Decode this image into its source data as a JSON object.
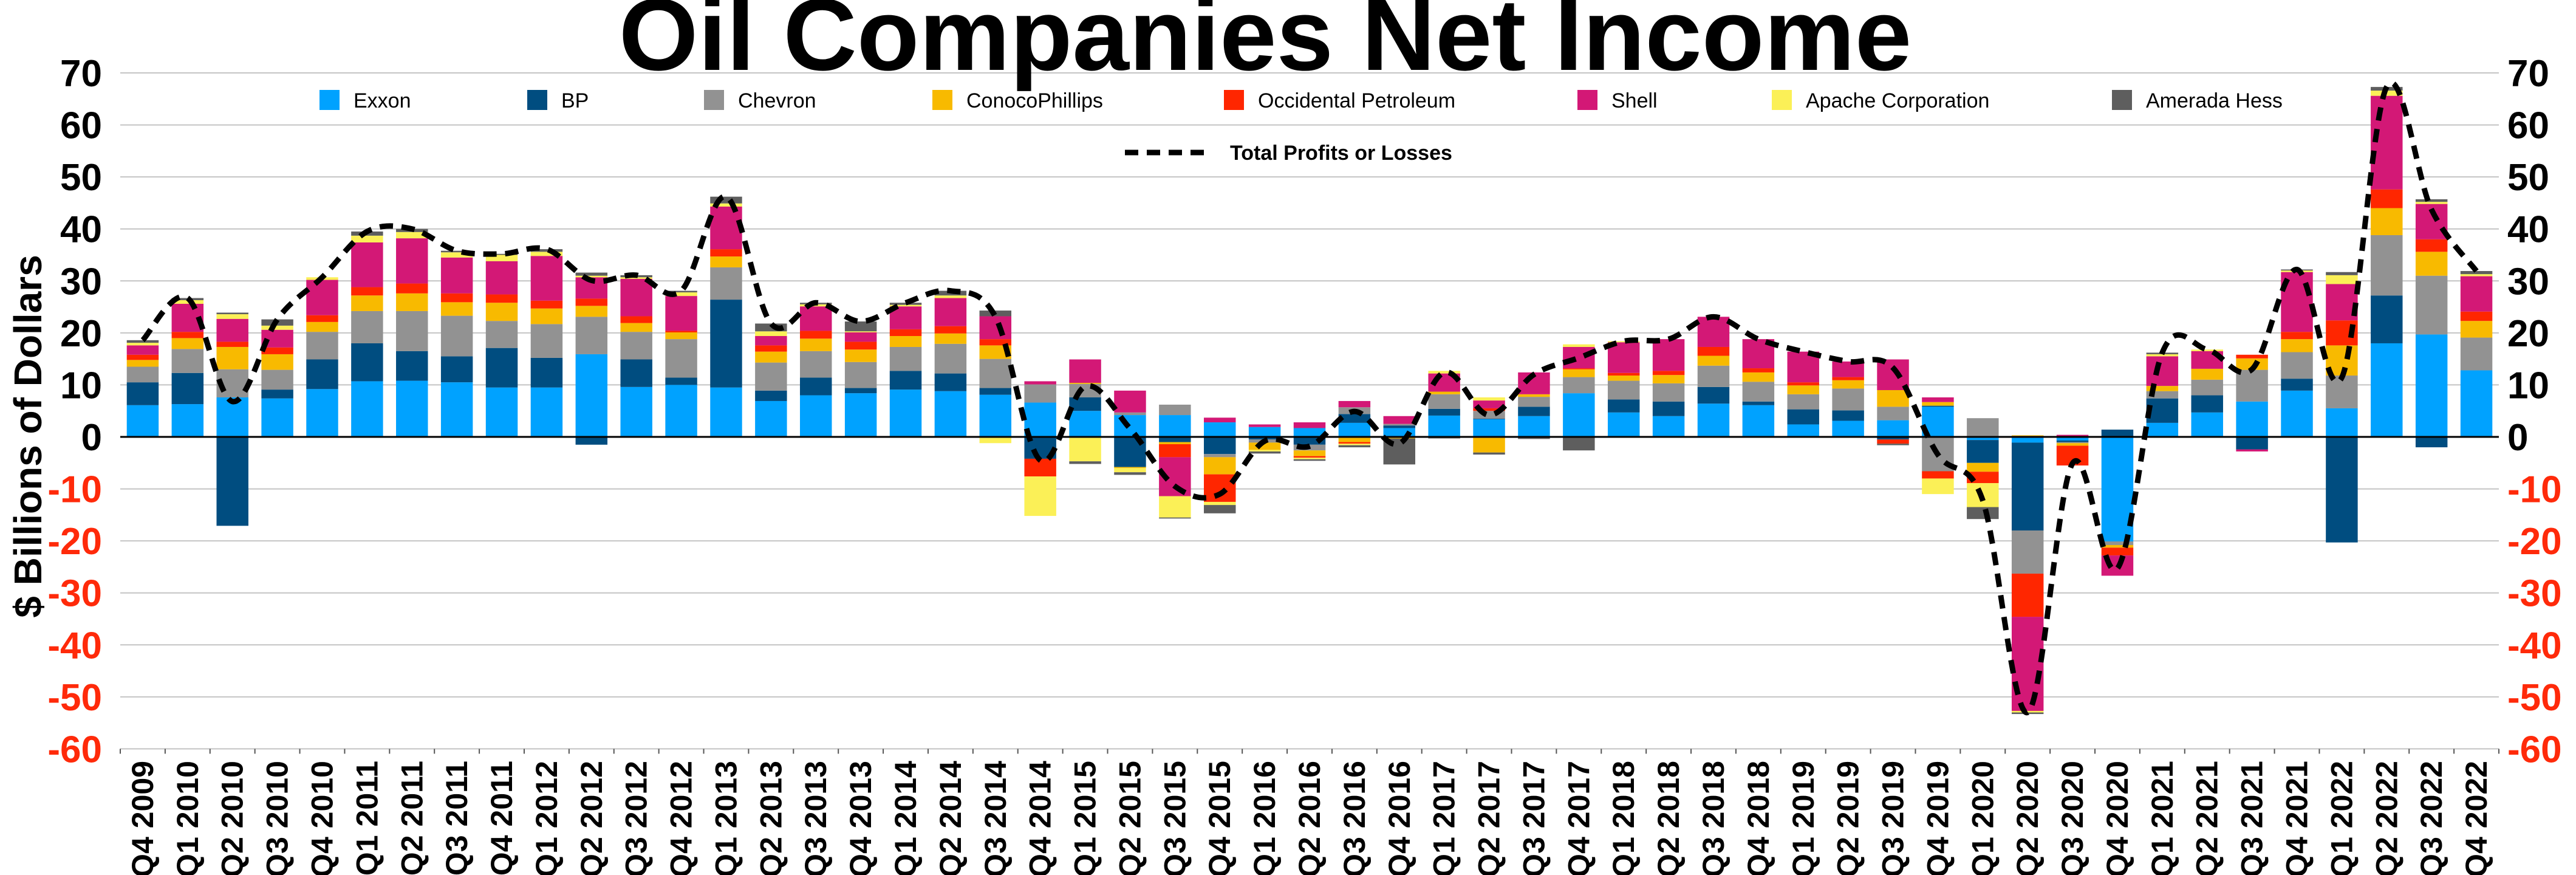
{
  "chart_data": {
    "type": "bar",
    "stacked": true,
    "title": "Oil Companies Net Income",
    "ylabel": "$ Billions of Dollars",
    "ylim": [
      -60,
      70
    ],
    "yticks": [
      70,
      60,
      50,
      40,
      30,
      20,
      10,
      0,
      -10,
      -20,
      -30,
      -40,
      -50,
      -60
    ],
    "dual_y_axis": true,
    "negative_tick_color": "#ff2a0a",
    "grid": true,
    "legend_placement": "top",
    "categories": [
      "Q4 2009",
      "Q1 2010",
      "Q2 2010",
      "Q3 2010",
      "Q4 2010",
      "Q1 2011",
      "Q2 2011",
      "Q3 2011",
      "Q4 2011",
      "Q1 2012",
      "Q2 2012",
      "Q3 2012",
      "Q4 2012",
      "Q1 2013",
      "Q2 2013",
      "Q3 2013",
      "Q4 2013",
      "Q1 2014",
      "Q2 2014",
      "Q3 2014",
      "Q4 2014",
      "Q1 2015",
      "Q2 2015",
      "Q3 2015",
      "Q4 2015",
      "Q1 2016",
      "Q2 2016",
      "Q3 2016",
      "Q4 2016",
      "Q1 2017",
      "Q2 2017",
      "Q3 2017",
      "Q4 2017",
      "Q1 2018",
      "Q2 2018",
      "Q3 2018",
      "Q4 2018",
      "Q1 2019",
      "Q2 2019",
      "Q3 2019",
      "Q4 2019",
      "Q1 2020",
      "Q2 2020",
      "Q3 2020",
      "Q4 2020",
      "Q1 2021",
      "Q2 2021",
      "Q3 2021",
      "Q4 2021",
      "Q1 2022",
      "Q2 2022",
      "Q3 2022",
      "Q4 2022"
    ],
    "series": [
      {
        "name": "Exxon",
        "color": "#00a2ff",
        "values": [
          6.1,
          6.3,
          7.6,
          7.4,
          9.2,
          10.7,
          10.8,
          10.5,
          9.5,
          9.5,
          15.9,
          9.6,
          10.0,
          9.5,
          6.9,
          8.0,
          8.4,
          9.1,
          8.8,
          8.1,
          6.6,
          5.0,
          4.2,
          4.2,
          2.8,
          1.9,
          1.7,
          2.7,
          1.7,
          4.1,
          3.4,
          4.0,
          8.4,
          4.7,
          4.0,
          6.4,
          6.1,
          2.4,
          3.1,
          3.2,
          5.8,
          -0.6,
          -1.1,
          -0.7,
          -20.1,
          2.7,
          4.7,
          6.8,
          8.9,
          5.5,
          18.0,
          19.7,
          12.8
        ]
      },
      {
        "name": "BP",
        "color": "#004d80",
        "values": [
          4.4,
          6.0,
          -17.1,
          1.7,
          5.7,
          7.3,
          5.7,
          5.0,
          7.6,
          5.7,
          -1.5,
          5.3,
          1.4,
          16.9,
          2.0,
          3.4,
          1.0,
          3.6,
          3.4,
          1.3,
          -4.2,
          2.6,
          -5.8,
          -1.0,
          -3.3,
          -0.5,
          -1.5,
          1.7,
          0.5,
          1.3,
          0.1,
          1.8,
          0,
          2.5,
          2.8,
          3.2,
          0.7,
          2.9,
          2.0,
          -0.5,
          0.2,
          -4.4,
          -16.9,
          -0.3,
          1.4,
          4.7,
          3.3,
          -2.4,
          2.3,
          -20.3,
          9.2,
          -2.0,
          0
        ]
      },
      {
        "name": "Chevron",
        "color": "#929292",
        "values": [
          3.0,
          4.6,
          5.4,
          3.8,
          5.3,
          6.2,
          7.7,
          7.8,
          5.2,
          6.5,
          7.2,
          5.3,
          7.4,
          6.2,
          5.4,
          5.1,
          5.0,
          4.6,
          5.7,
          5.6,
          3.5,
          2.6,
          0.5,
          2.0,
          -0.6,
          -0.6,
          -1.1,
          1.3,
          0.3,
          2.8,
          1.5,
          1.9,
          3.1,
          3.6,
          3.5,
          4.1,
          3.8,
          2.9,
          4.2,
          2.6,
          -6.6,
          3.6,
          -8.3,
          -0.2,
          -0.7,
          1.4,
          3.0,
          6.1,
          5.1,
          6.3,
          11.6,
          11.3,
          6.3
        ]
      },
      {
        "name": "ConocoPhillips",
        "color": "#f8ba00",
        "values": [
          1.3,
          2.1,
          4.3,
          3.0,
          1.9,
          3.0,
          3.4,
          2.6,
          3.5,
          3.0,
          2.1,
          1.7,
          1.3,
          2.1,
          2.1,
          2.4,
          2.4,
          2.1,
          2.0,
          2.6,
          0,
          0.2,
          -0.2,
          -0.4,
          -3.3,
          -1.4,
          -1.1,
          -1.0,
          -0.3,
          0.5,
          -3.0,
          0.5,
          1.5,
          1.0,
          1.6,
          1.9,
          1.8,
          1.7,
          1.6,
          3.2,
          0.7,
          -1.7,
          0.3,
          -0.5,
          -0.5,
          1.0,
          2.1,
          2.2,
          2.5,
          5.8,
          5.2,
          4.6,
          3.2
        ]
      },
      {
        "name": "Occidental Petroleum",
        "color": "#ff2600",
        "values": [
          1.0,
          1.2,
          1.0,
          1.3,
          1.3,
          1.6,
          1.9,
          1.7,
          1.6,
          1.5,
          1.4,
          1.3,
          0.3,
          1.4,
          1.2,
          1.5,
          1.5,
          1.3,
          1.4,
          1.2,
          -3.4,
          0,
          0,
          -2.5,
          -5.3,
          0,
          -0.3,
          -0.3,
          0,
          0,
          0.5,
          0,
          0.2,
          0.5,
          0.8,
          1.7,
          0.8,
          0.6,
          0.6,
          -0.8,
          -1.4,
          -2.2,
          -8.3,
          -3.8,
          -1.5,
          0,
          0,
          0.7,
          1.4,
          4.8,
          3.6,
          2.4,
          1.8
        ]
      },
      {
        "name": "Shell",
        "color": "#d31876",
        "values": [
          1.8,
          5.4,
          4.4,
          3.4,
          6.8,
          8.6,
          8.7,
          6.9,
          6.4,
          8.6,
          4.1,
          7.2,
          6.7,
          8.2,
          1.8,
          4.7,
          1.8,
          4.4,
          5.4,
          4.4,
          0.6,
          4.5,
          4.2,
          -7.5,
          0.9,
          0.5,
          1.1,
          1.2,
          1.5,
          3.5,
          1.5,
          4.2,
          4.1,
          5.9,
          6.1,
          5.8,
          5.6,
          5.9,
          3.0,
          5.9,
          0.9,
          0,
          -18.1,
          0.4,
          -3.9,
          5.7,
          3.4,
          -0.4,
          11.5,
          7.0,
          18.0,
          6.8,
          6.8
        ]
      },
      {
        "name": "Apache Corporation",
        "color": "#fbf057",
        "values": [
          0.5,
          0.7,
          0.9,
          0.8,
          0.5,
          1.3,
          1.2,
          1.0,
          1.2,
          0.8,
          0.3,
          0.3,
          0.7,
          0.6,
          0.9,
          0.4,
          0.2,
          0.3,
          0.5,
          -1.2,
          -7.6,
          -4.7,
          -0.8,
          -4.1,
          -0.6,
          -0.3,
          -0.3,
          -0.3,
          0,
          0.5,
          0.6,
          0,
          0.5,
          0.2,
          0,
          0,
          0,
          0,
          0,
          0,
          -3.0,
          -4.6,
          -0.3,
          0,
          0,
          0.4,
          0.3,
          0,
          0.3,
          1.7,
          1.0,
          0.4,
          0.4
        ]
      },
      {
        "name": "Amerada Hess",
        "color": "#5e5e5e",
        "values": [
          0.5,
          0.4,
          0.3,
          1.2,
          0,
          0.8,
          0.6,
          0.3,
          0.2,
          0.5,
          0.6,
          0.4,
          0.3,
          1.3,
          1.5,
          0.3,
          1.9,
          0.4,
          0.9,
          1.1,
          0,
          -0.5,
          -0.5,
          -0.2,
          -1.6,
          -0.4,
          -0.3,
          -0.4,
          -5.0,
          -0.3,
          -0.4,
          -0.4,
          -2.6,
          0,
          0,
          0,
          0,
          0,
          0,
          -0.3,
          0,
          -2.3,
          -0.3,
          0,
          0,
          0.3,
          0,
          0,
          0.2,
          0.6,
          0.7,
          0.5,
          0.6
        ]
      }
    ],
    "line_series": {
      "name": "Total Profits or Losses",
      "color": "#000000",
      "style": "dashed",
      "values": [
        18.6,
        26.7,
        6.8,
        22.6,
        30.7,
        39.5,
        40.0,
        35.8,
        35.2,
        36.1,
        30.1,
        31.1,
        28.1,
        46.2,
        21.8,
        25.8,
        22.2,
        25.8,
        28.1,
        23.1,
        -4.5,
        9.7,
        1.6,
        -9.5,
        -11.0,
        -0.8,
        -1.8,
        4.9,
        -1.3,
        12.4,
        4.2,
        12.0,
        15.2,
        18.4,
        18.8,
        23.1,
        18.8,
        16.4,
        14.5,
        13.3,
        -3.4,
        -12.2,
        -53.0,
        -5.1,
        -25.3,
        16.2,
        16.8,
        13.0,
        32.2,
        11.4,
        67.3,
        43.7,
        31.9
      ]
    }
  }
}
